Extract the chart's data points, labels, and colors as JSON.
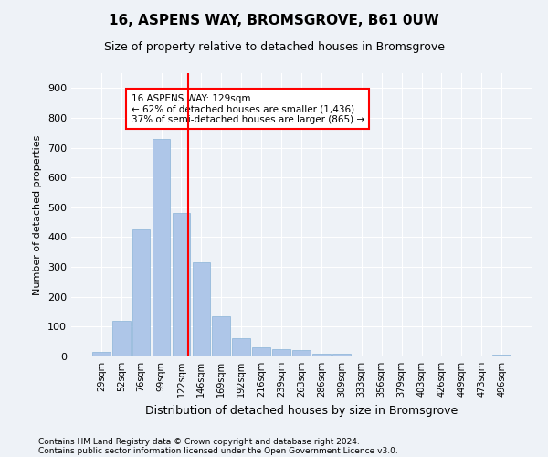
{
  "title": "16, ASPENS WAY, BROMSGROVE, B61 0UW",
  "subtitle": "Size of property relative to detached houses in Bromsgrove",
  "xlabel": "Distribution of detached houses by size in Bromsgrove",
  "ylabel": "Number of detached properties",
  "bar_color": "#aec6e8",
  "bar_edge_color": "#8ab4d8",
  "categories": [
    "29sqm",
    "52sqm",
    "76sqm",
    "99sqm",
    "122sqm",
    "146sqm",
    "169sqm",
    "192sqm",
    "216sqm",
    "239sqm",
    "263sqm",
    "286sqm",
    "309sqm",
    "333sqm",
    "356sqm",
    "379sqm",
    "403sqm",
    "426sqm",
    "449sqm",
    "473sqm",
    "496sqm"
  ],
  "values": [
    15,
    120,
    425,
    730,
    480,
    315,
    135,
    60,
    30,
    25,
    20,
    10,
    8,
    0,
    0,
    0,
    0,
    0,
    0,
    0,
    5
  ],
  "ylim": [
    0,
    950
  ],
  "yticks": [
    0,
    100,
    200,
    300,
    400,
    500,
    600,
    700,
    800,
    900
  ],
  "red_line_x": 4.35,
  "annotation_text": "16 ASPENS WAY: 129sqm\n← 62% of detached houses are smaller (1,436)\n37% of semi-detached houses are larger (865) →",
  "annotation_box_color": "white",
  "annotation_box_edge_color": "red",
  "footer_line1": "Contains HM Land Registry data © Crown copyright and database right 2024.",
  "footer_line2": "Contains public sector information licensed under the Open Government Licence v3.0.",
  "background_color": "#eef2f7",
  "grid_color": "white"
}
